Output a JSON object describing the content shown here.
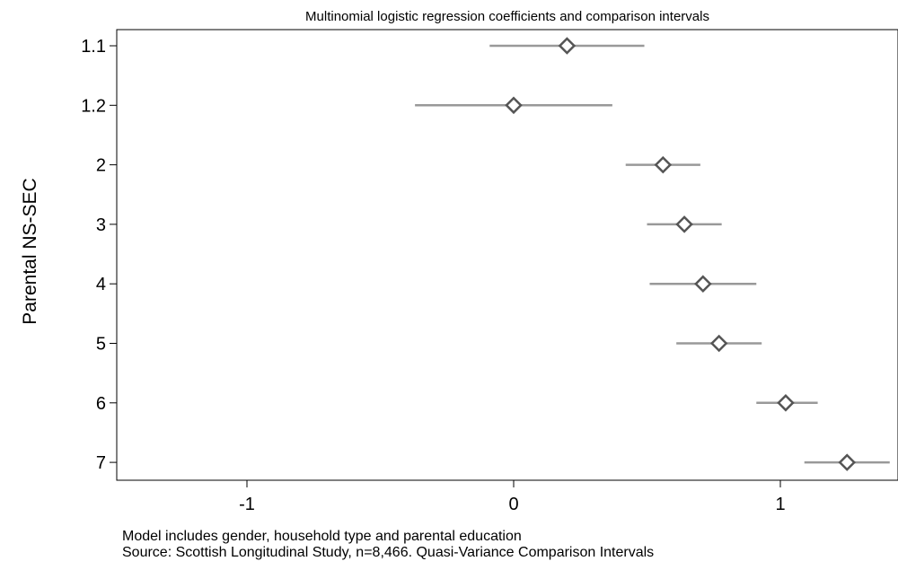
{
  "chart_data": {
    "type": "scatter",
    "title": "Multinomial logistic regression coefficients and comparison intervals",
    "xlabel": "",
    "ylabel": "Parental NS-SEC",
    "categories": [
      "1.1",
      "1.2",
      "2",
      "3",
      "4",
      "5",
      "6",
      "7"
    ],
    "points": [
      {
        "category": "1.1",
        "estimate": 0.2,
        "lower": -0.09,
        "upper": 0.49
      },
      {
        "category": "1.2",
        "estimate": 0.0,
        "lower": -0.37,
        "upper": 0.37
      },
      {
        "category": "2",
        "estimate": 0.56,
        "lower": 0.42,
        "upper": 0.7
      },
      {
        "category": "3",
        "estimate": 0.64,
        "lower": 0.5,
        "upper": 0.78
      },
      {
        "category": "4",
        "estimate": 0.71,
        "lower": 0.51,
        "upper": 0.91
      },
      {
        "category": "5",
        "estimate": 0.77,
        "lower": 0.61,
        "upper": 0.93
      },
      {
        "category": "6",
        "estimate": 1.02,
        "lower": 0.91,
        "upper": 1.14
      },
      {
        "category": "7",
        "estimate": 1.25,
        "lower": 1.09,
        "upper": 1.41
      }
    ],
    "x_ticks": [
      "-1",
      "0",
      "1"
    ],
    "xlim": [
      -1.45,
      1.42
    ],
    "grid": false,
    "colors": {
      "marker": "#555555",
      "interval": "#999999",
      "axis": "#000000"
    }
  },
  "notes": [
    "Model includes gender, household type and parental education",
    "Source: Scottish Longitudinal Study, n=8,466. Quasi-Variance Comparison Intervals"
  ]
}
